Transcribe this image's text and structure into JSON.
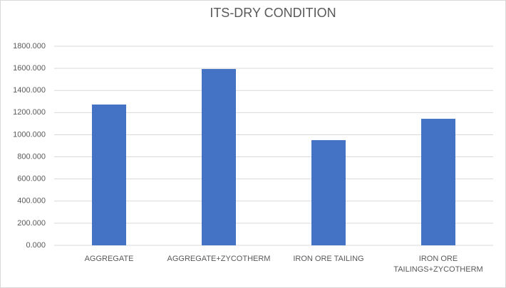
{
  "chart_data": {
    "type": "bar",
    "title": "ITS-DRY CONDITION",
    "categories": [
      "AGGREGATE",
      "AGGREGATE+ZYCOTHERM",
      "IRON ORE TAILING",
      "IRON ORE TAILINGS+ZYCOTHERM"
    ],
    "values": [
      1273,
      1594,
      951,
      1144
    ],
    "color": "#4472c4",
    "ylim": [
      0,
      1800
    ],
    "yticks": [
      {
        "value": 0,
        "label": "0.000"
      },
      {
        "value": 200,
        "label": "200.000"
      },
      {
        "value": 400,
        "label": "400.000"
      },
      {
        "value": 600,
        "label": "600.000"
      },
      {
        "value": 800,
        "label": "800.000"
      },
      {
        "value": 1000,
        "label": "1000.000"
      },
      {
        "value": 1200,
        "label": "1200.000"
      },
      {
        "value": 1400,
        "label": "1400.000"
      },
      {
        "value": 1600,
        "label": "1600.000"
      },
      {
        "value": 1800,
        "label": "1800.000"
      }
    ],
    "grid": true
  }
}
